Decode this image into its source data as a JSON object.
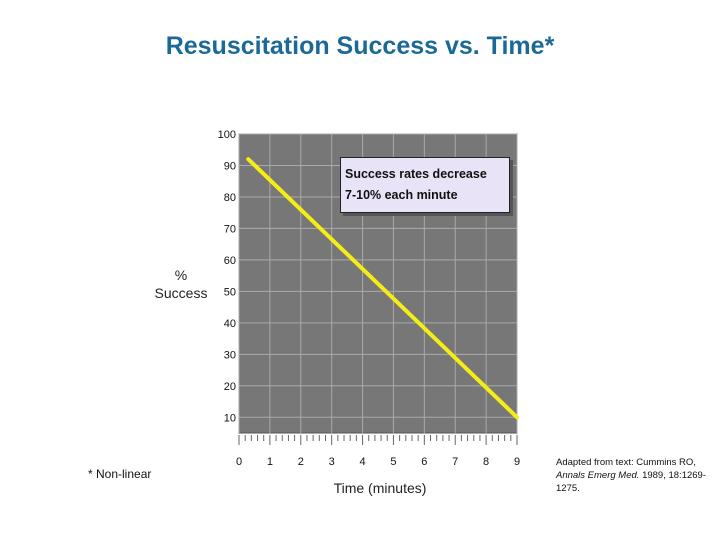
{
  "slide": {
    "title": "Resuscitation Success vs. Time*",
    "footnote": "* Non-linear",
    "citation_prefix": "Adapted from text: Cummins RO, ",
    "citation_journal": "Annals Emerg Med.",
    "citation_suffix": " 1989, 18:1269-1275."
  },
  "annotation": {
    "line1": "Success rates decrease",
    "line2": "7-10% each minute"
  },
  "colors": {
    "line": "#f4ee16",
    "plot_bg": "#777777",
    "grid": "#aaaaaa"
  },
  "chart_data": {
    "type": "line",
    "title": "Resuscitation Success vs. Time*",
    "xlabel": "Time (minutes)",
    "ylabel_line1": "%",
    "ylabel_line2": "Success",
    "x_ticks": [
      "0",
      "1",
      "2",
      "3",
      "4",
      "5",
      "6",
      "7",
      "8",
      "9"
    ],
    "y_ticks": [
      "10",
      "20",
      "30",
      "40",
      "50",
      "60",
      "70",
      "80",
      "90",
      "100"
    ],
    "xlim": [
      0,
      9
    ],
    "ylim": [
      5,
      100
    ],
    "grid": true,
    "series": [
      {
        "x": [
          0.3,
          9
        ],
        "y": [
          92,
          10
        ]
      }
    ]
  }
}
